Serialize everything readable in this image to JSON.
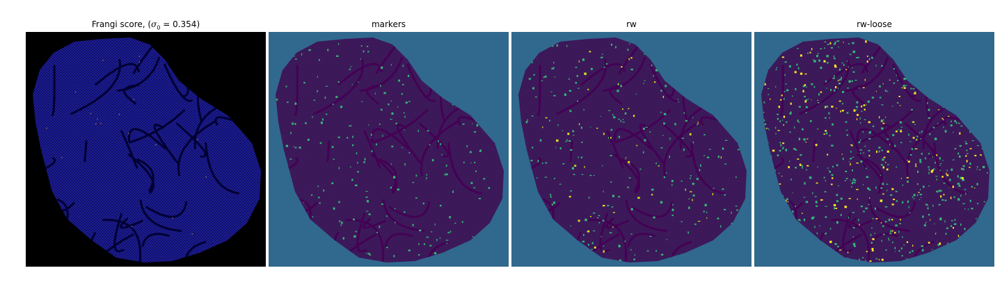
{
  "figure": {
    "panels": [
      {
        "id": "frangi",
        "title_prefix": "Frangi score, (",
        "title_sigma": "σ",
        "title_sub": "0",
        "title_suffix": " = 0.354)",
        "background_color": "#000000",
        "region_color": "#1a1a8a",
        "line_color": "#000033",
        "highlight_color": "#9a7050"
      },
      {
        "id": "markers",
        "title": "markers",
        "background_color": "#31688e",
        "region_color": "#3b1c5a",
        "line_color": "#440154",
        "highlight_color": "#35b779"
      },
      {
        "id": "rw",
        "title": "rw",
        "background_color": "#31688e",
        "region_color": "#3b1c5a",
        "line_color": "#440154",
        "highlight_color": "#35b779",
        "accent_color": "#d8e219"
      },
      {
        "id": "rw-loose",
        "title": "rw-loose",
        "background_color": "#31688e",
        "region_color": "#3b1c5a",
        "line_color": "#440154",
        "highlight_color": "#35b779",
        "accent_color": "#fde725"
      }
    ]
  }
}
